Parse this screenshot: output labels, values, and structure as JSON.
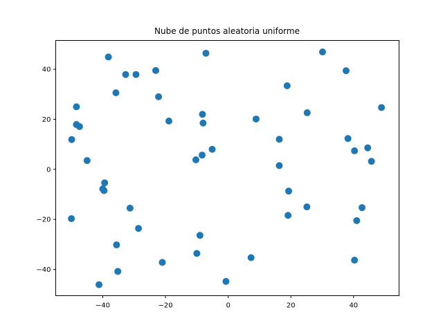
{
  "chart_data": {
    "type": "scatter",
    "title": "Nube de puntos aleatoria uniforme",
    "xlabel": "",
    "ylabel": "",
    "xlim": [
      -55,
      54.5
    ],
    "ylim": [
      -50.5,
      51.5
    ],
    "xticks": [
      -40,
      -20,
      0,
      20,
      40
    ],
    "yticks": [
      -40,
      -20,
      0,
      20,
      40
    ],
    "xtick_labels": [
      "−40",
      "−20",
      "0",
      "20",
      "40"
    ],
    "ytick_labels": [
      "−40",
      "−20",
      "0",
      "20",
      "40"
    ],
    "grid": false,
    "marker_color": "#1f77b4",
    "points": [
      {
        "x": -38.2,
        "y": 44.9
      },
      {
        "x": -7.1,
        "y": 46.4
      },
      {
        "x": 30.1,
        "y": 46.9
      },
      {
        "x": -23.1,
        "y": 39.5
      },
      {
        "x": 37.6,
        "y": 39.4
      },
      {
        "x": -32.7,
        "y": 37.9
      },
      {
        "x": -29.4,
        "y": 37.9
      },
      {
        "x": 18.8,
        "y": 33.4
      },
      {
        "x": -35.8,
        "y": 30.6
      },
      {
        "x": -22.2,
        "y": 29.0
      },
      {
        "x": -48.4,
        "y": 25.0
      },
      {
        "x": 48.9,
        "y": 24.7
      },
      {
        "x": 25.2,
        "y": 22.6
      },
      {
        "x": -8.2,
        "y": 22.0
      },
      {
        "x": 8.9,
        "y": 20.1
      },
      {
        "x": -18.9,
        "y": 19.3
      },
      {
        "x": -8.0,
        "y": 18.5
      },
      {
        "x": -48.4,
        "y": 17.9
      },
      {
        "x": -47.4,
        "y": 17.1
      },
      {
        "x": 38.2,
        "y": 12.3
      },
      {
        "x": 16.3,
        "y": 12.0
      },
      {
        "x": -49.9,
        "y": 11.9
      },
      {
        "x": 44.5,
        "y": 8.6
      },
      {
        "x": -5.1,
        "y": 8.0
      },
      {
        "x": 40.3,
        "y": 7.4
      },
      {
        "x": -8.3,
        "y": 5.7
      },
      {
        "x": -10.3,
        "y": 3.8
      },
      {
        "x": -45.0,
        "y": 3.5
      },
      {
        "x": 45.7,
        "y": 3.2
      },
      {
        "x": 16.3,
        "y": 1.5
      },
      {
        "x": -39.4,
        "y": -5.4
      },
      {
        "x": -40.0,
        "y": -7.8
      },
      {
        "x": -39.6,
        "y": -8.5
      },
      {
        "x": 19.3,
        "y": -8.7
      },
      {
        "x": 25.1,
        "y": -15.0
      },
      {
        "x": -31.3,
        "y": -15.5
      },
      {
        "x": 42.7,
        "y": -15.3
      },
      {
        "x": 19.1,
        "y": -18.4
      },
      {
        "x": -50.0,
        "y": -19.7
      },
      {
        "x": 41.0,
        "y": -20.5
      },
      {
        "x": -28.6,
        "y": -23.6
      },
      {
        "x": -9.0,
        "y": -26.4
      },
      {
        "x": -35.6,
        "y": -30.2
      },
      {
        "x": -10.0,
        "y": -33.6
      },
      {
        "x": 7.3,
        "y": -35.3
      },
      {
        "x": 40.3,
        "y": -36.3
      },
      {
        "x": -21.0,
        "y": -37.2
      },
      {
        "x": -35.2,
        "y": -40.8
      },
      {
        "x": -0.7,
        "y": -44.8
      },
      {
        "x": -41.2,
        "y": -46.1
      }
    ]
  }
}
